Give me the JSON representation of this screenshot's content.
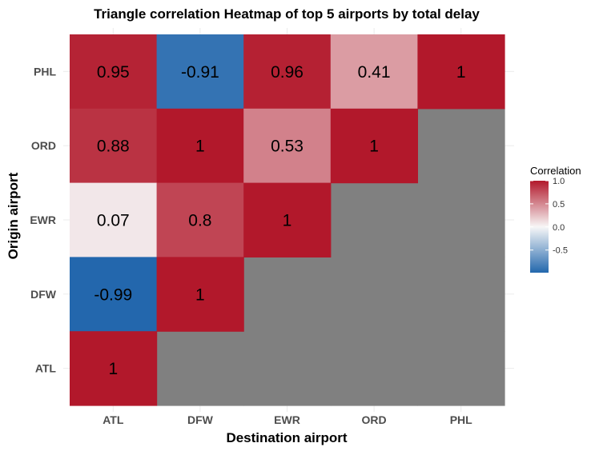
{
  "chart_data": {
    "type": "heatmap",
    "title": "Triangle correlation Heatmap of top 5 airports by total delay",
    "xlabel": "Destination airport",
    "ylabel": "Origin airport",
    "x_categories": [
      "ATL",
      "DFW",
      "EWR",
      "ORD",
      "PHL"
    ],
    "y_categories": [
      "ATL",
      "DFW",
      "EWR",
      "ORD",
      "PHL"
    ],
    "cells": [
      {
        "x": "ATL",
        "y": "PHL",
        "value": 0.95,
        "label": "0.95"
      },
      {
        "x": "DFW",
        "y": "PHL",
        "value": -0.91,
        "label": "-0.91"
      },
      {
        "x": "EWR",
        "y": "PHL",
        "value": 0.96,
        "label": "0.96"
      },
      {
        "x": "ORD",
        "y": "PHL",
        "value": 0.41,
        "label": "0.41"
      },
      {
        "x": "PHL",
        "y": "PHL",
        "value": 1,
        "label": "1"
      },
      {
        "x": "ATL",
        "y": "ORD",
        "value": 0.88,
        "label": "0.88"
      },
      {
        "x": "DFW",
        "y": "ORD",
        "value": 1,
        "label": "1"
      },
      {
        "x": "EWR",
        "y": "ORD",
        "value": 0.53,
        "label": "0.53"
      },
      {
        "x": "ORD",
        "y": "ORD",
        "value": 1,
        "label": "1"
      },
      {
        "x": "ATL",
        "y": "EWR",
        "value": 0.07,
        "label": "0.07"
      },
      {
        "x": "DFW",
        "y": "EWR",
        "value": 0.8,
        "label": "0.8"
      },
      {
        "x": "EWR",
        "y": "EWR",
        "value": 1,
        "label": "1"
      },
      {
        "x": "ATL",
        "y": "DFW",
        "value": -0.99,
        "label": "-0.99"
      },
      {
        "x": "DFW",
        "y": "DFW",
        "value": 1,
        "label": "1"
      },
      {
        "x": "ATL",
        "y": "ATL",
        "value": 1,
        "label": "1"
      }
    ],
    "missing_color": "#808080",
    "color_scale": {
      "low_color": "#2166ac",
      "mid_color": "#f7f7f7",
      "high_color": "#b2182b",
      "domain": [
        -1,
        0,
        1
      ]
    },
    "legend": {
      "title": "Correlation",
      "ticks": [
        "1.0",
        "0.5",
        "0.0",
        "-0.5"
      ],
      "tick_values": [
        1.0,
        0.5,
        0.0,
        -0.5
      ],
      "range": [
        -0.99,
        1.0
      ],
      "position": "right"
    },
    "grid": true
  }
}
